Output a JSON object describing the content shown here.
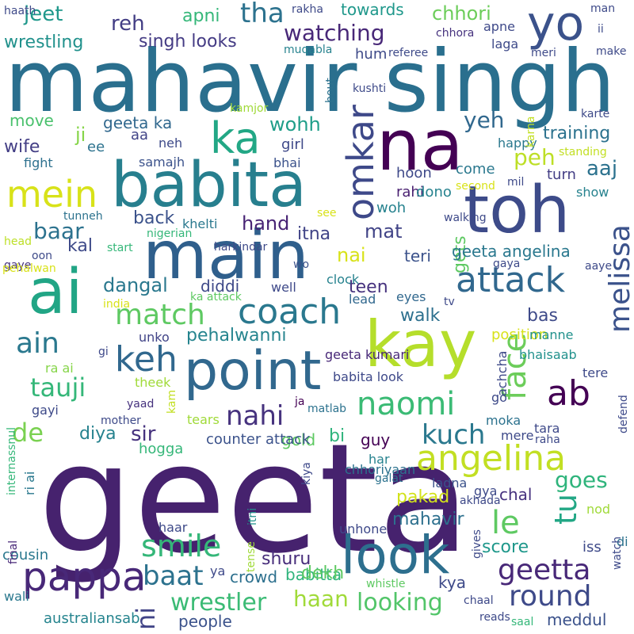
{
  "words": [
    {
      "text": "geeta",
      "color": "#46226e"
    },
    {
      "text": "mahavir singh",
      "color": "#2a6f8e"
    },
    {
      "text": "main",
      "color": "#2f5f8c"
    },
    {
      "text": "babita",
      "color": "#277f8e"
    },
    {
      "text": "toh",
      "color": "#3d4b89"
    },
    {
      "text": "na",
      "color": "#440154"
    },
    {
      "text": "ai",
      "color": "#21a585"
    },
    {
      "text": "kay",
      "color": "#b5de2b"
    },
    {
      "text": "point",
      "color": "#31688e"
    },
    {
      "text": "look",
      "color": "#2d6f8e"
    },
    {
      "text": "ka",
      "color": "#22a785"
    },
    {
      "text": "yo",
      "color": "#3b528b"
    },
    {
      "text": "omkar",
      "color": "#3e4989"
    },
    {
      "text": "mein",
      "color": "#d8e219"
    },
    {
      "text": "attack",
      "color": "#31688e"
    },
    {
      "text": "coach",
      "color": "#2a788e"
    },
    {
      "text": "pappa",
      "color": "#482878"
    },
    {
      "text": "angelina",
      "color": "#c2df23"
    },
    {
      "text": "melissa",
      "color": "#3b528b"
    },
    {
      "text": "face",
      "color": "#6ccd5a"
    },
    {
      "text": "naomi",
      "color": "#3bbb75"
    },
    {
      "text": "smile",
      "color": "#35b779"
    },
    {
      "text": "ab",
      "color": "#440154"
    },
    {
      "text": "keh",
      "color": "#31688e"
    },
    {
      "text": "geetta",
      "color": "#482878"
    },
    {
      "text": "round",
      "color": "#3e4a89"
    },
    {
      "text": "ain",
      "color": "#2a788e"
    },
    {
      "text": "match",
      "color": "#5ec962"
    },
    {
      "text": "tauji",
      "color": "#35b779"
    },
    {
      "text": "le",
      "color": "#5ec962"
    },
    {
      "text": "tu",
      "color": "#22a785"
    },
    {
      "text": "ni",
      "color": "#414487"
    },
    {
      "text": "baat",
      "color": "#2c728e"
    },
    {
      "text": "kuch",
      "color": "#2a788e"
    },
    {
      "text": "nahi",
      "color": "#46327e"
    },
    {
      "text": "de",
      "color": "#7ad151"
    },
    {
      "text": "wrestler",
      "color": "#3bbb75"
    },
    {
      "text": "looking",
      "color": "#52c569"
    },
    {
      "text": "haan",
      "color": "#a0da39"
    },
    {
      "text": "watching",
      "color": "#482878"
    },
    {
      "text": "tha",
      "color": "#2c728e"
    },
    {
      "text": "sir",
      "color": "#46327e"
    },
    {
      "text": "yeh",
      "color": "#31688e"
    },
    {
      "text": "baar",
      "color": "#2c728e"
    },
    {
      "text": "pehalwanni",
      "color": "#25848e"
    },
    {
      "text": "goes",
      "color": "#2fb47c"
    },
    {
      "text": "dangal",
      "color": "#2a788e"
    },
    {
      "text": "chhori",
      "color": "#6ccd5a"
    },
    {
      "text": "peh",
      "color": "#bddf26"
    },
    {
      "text": "aaj",
      "color": "#2c728e"
    },
    {
      "text": "wohh",
      "color": "#1f9e89"
    },
    {
      "text": "jeet",
      "color": "#1f988b"
    },
    {
      "text": "reh",
      "color": "#433e85"
    },
    {
      "text": "apni",
      "color": "#35b779"
    },
    {
      "text": "towards",
      "color": "#1f988b"
    },
    {
      "text": "wrestling",
      "color": "#21918c"
    },
    {
      "text": "singh looks",
      "color": "#443b84"
    },
    {
      "text": "geeta ka",
      "color": "#31688e"
    },
    {
      "text": "training",
      "color": "#2c728e"
    },
    {
      "text": "ji",
      "color": "#86d549"
    },
    {
      "text": "move",
      "color": "#4ac16d"
    },
    {
      "text": "ee",
      "color": "#2c728e"
    },
    {
      "text": "wife",
      "color": "#433e85"
    },
    {
      "text": "aa",
      "color": "#414487"
    },
    {
      "text": "girl",
      "color": "#3e4989"
    },
    {
      "text": "hand",
      "color": "#482475"
    },
    {
      "text": "mat",
      "color": "#414487"
    },
    {
      "text": "itna",
      "color": "#414487"
    },
    {
      "text": "nai",
      "color": "#d8e219"
    },
    {
      "text": "back",
      "color": "#3b528b"
    },
    {
      "text": "kal",
      "color": "#3e4a89"
    },
    {
      "text": "gets",
      "color": "#5ec962"
    },
    {
      "text": "teri",
      "color": "#3b528b"
    },
    {
      "text": "geeta angelina",
      "color": "#2a788e"
    },
    {
      "text": "teen",
      "color": "#46327e"
    },
    {
      "text": "walk",
      "color": "#2d708e"
    },
    {
      "text": "bas",
      "color": "#3e4a89"
    },
    {
      "text": "diddi",
      "color": "#3e4989"
    },
    {
      "text": "diya",
      "color": "#26828e"
    },
    {
      "text": "bi",
      "color": "#2fb47c"
    },
    {
      "text": "guy",
      "color": "#440154"
    },
    {
      "text": "gold",
      "color": "#5ec962"
    },
    {
      "text": "chal",
      "color": "#46327e"
    },
    {
      "text": "pakad",
      "color": "#d2e21b"
    },
    {
      "text": "mahavir",
      "color": "#2d708e"
    },
    {
      "text": "score",
      "color": "#1f988b"
    },
    {
      "text": "shuru",
      "color": "#472d7b"
    },
    {
      "text": "babitta",
      "color": "#2fb47c"
    },
    {
      "text": "dekh",
      "color": "#5ec962"
    },
    {
      "text": "kya",
      "color": "#3e4a89"
    },
    {
      "text": "crowd",
      "color": "#2d708e"
    },
    {
      "text": "people",
      "color": "#3b528b"
    },
    {
      "text": "australiansab",
      "color": "#25848e"
    },
    {
      "text": "meddul",
      "color": "#3b528b"
    },
    {
      "text": "cousin",
      "color": "#2a788e"
    },
    {
      "text": "counter attack",
      "color": "#3b528b"
    },
    {
      "text": "hogga",
      "color": "#35b779"
    },
    {
      "text": "achcha",
      "color": "#3e4a89"
    },
    {
      "text": "position",
      "color": "#d8e219"
    },
    {
      "text": "bhaisaab",
      "color": "#21918c"
    },
    {
      "text": "babita look",
      "color": "#3e4989"
    },
    {
      "text": "geeta kumari",
      "color": "#482878"
    },
    {
      "text": "lead",
      "color": "#31688e"
    },
    {
      "text": "eyes",
      "color": "#31688e"
    },
    {
      "text": "hoon",
      "color": "#3e4989"
    },
    {
      "text": "come",
      "color": "#2a788e"
    },
    {
      "text": "rahi",
      "color": "#481f70"
    },
    {
      "text": "dono",
      "color": "#26828e"
    },
    {
      "text": "woh",
      "color": "#26828e"
    },
    {
      "text": "turn",
      "color": "#433e85"
    },
    {
      "text": "show",
      "color": "#26828e"
    },
    {
      "text": "happy",
      "color": "#2a788e"
    },
    {
      "text": "bhai",
      "color": "#3b528b"
    },
    {
      "text": "samajh",
      "color": "#3b528b"
    },
    {
      "text": "neh",
      "color": "#3e4a89"
    },
    {
      "text": "fight",
      "color": "#2d708e"
    },
    {
      "text": "nigerian",
      "color": "#35b779"
    },
    {
      "text": "tunneh",
      "color": "#2c728e"
    },
    {
      "text": "khelti",
      "color": "#2a788e"
    },
    {
      "text": "start",
      "color": "#35b779"
    },
    {
      "text": "head",
      "color": "#bddf26"
    },
    {
      "text": "gaye",
      "color": "#46327e"
    },
    {
      "text": "oon",
      "color": "#3e4a89"
    },
    {
      "text": "pehalwan",
      "color": "#d8e219"
    },
    {
      "text": "harkindar",
      "color": "#3e4a89"
    },
    {
      "text": "wo",
      "color": "#3b528b"
    },
    {
      "text": "well",
      "color": "#3e4989"
    },
    {
      "text": "clock",
      "color": "#26828e"
    },
    {
      "text": "india",
      "color": "#d8e219"
    },
    {
      "text": "ka attack",
      "color": "#5ec962"
    },
    {
      "text": "unko",
      "color": "#414487"
    },
    {
      "text": "gi",
      "color": "#3e4989"
    },
    {
      "text": "ra ai",
      "color": "#86d549"
    },
    {
      "text": "theek",
      "color": "#a0da39"
    },
    {
      "text": "yaad",
      "color": "#46327e"
    },
    {
      "text": "kam",
      "color": "#c2df23"
    },
    {
      "text": "tears",
      "color": "#a0da39"
    },
    {
      "text": "ja",
      "color": "#440154"
    },
    {
      "text": "matlab",
      "color": "#2c728e"
    },
    {
      "text": "mother",
      "color": "#3e4a89"
    },
    {
      "text": "gayi",
      "color": "#3e4a89"
    },
    {
      "text": "ladna",
      "color": "#3b528b"
    },
    {
      "text": "moka",
      "color": "#2c728e"
    },
    {
      "text": "mere",
      "color": "#3e4a89"
    },
    {
      "text": "tara",
      "color": "#3e4989"
    },
    {
      "text": "raha",
      "color": "#3e4a89"
    },
    {
      "text": "defend",
      "color": "#3e4a89"
    },
    {
      "text": "tere",
      "color": "#3e4a89"
    },
    {
      "text": "manne",
      "color": "#21918c"
    },
    {
      "text": "go",
      "color": "#3e4a89"
    },
    {
      "text": "internassnul",
      "color": "#35b779"
    },
    {
      "text": "ri ai",
      "color": "#2a788e"
    },
    {
      "text": "har",
      "color": "#26828e"
    },
    {
      "text": "galat",
      "color": "#2c728e"
    },
    {
      "text": "kiya",
      "color": "#3e4989"
    },
    {
      "text": "itni",
      "color": "#21918c"
    },
    {
      "text": "chhoriyaan",
      "color": "#2c728e"
    },
    {
      "text": "haar",
      "color": "#3e4a89"
    },
    {
      "text": "unhone",
      "color": "#3e4989"
    },
    {
      "text": "akhada",
      "color": "#3e4989"
    },
    {
      "text": "gya",
      "color": "#3e4a89"
    },
    {
      "text": "nod",
      "color": "#a0da39"
    },
    {
      "text": "gives",
      "color": "#3e4a89"
    },
    {
      "text": "iss",
      "color": "#3e4a89"
    },
    {
      "text": "di",
      "color": "#2c728e"
    },
    {
      "text": "watch",
      "color": "#3e4a89"
    },
    {
      "text": "final",
      "color": "#482878"
    },
    {
      "text": "wali",
      "color": "#2a788e"
    },
    {
      "text": "tense",
      "color": "#a0da39"
    },
    {
      "text": "ya",
      "color": "#3e4989"
    },
    {
      "text": "whistle",
      "color": "#5ec962"
    },
    {
      "text": "chaal",
      "color": "#3e4989"
    },
    {
      "text": "reads",
      "color": "#3e4a89"
    },
    {
      "text": "saal",
      "color": "#35b779"
    },
    {
      "text": "haath",
      "color": "#3e4a89"
    },
    {
      "text": "rakha",
      "color": "#3e4a89"
    },
    {
      "text": "apne",
      "color": "#3e4989"
    },
    {
      "text": "chhora",
      "color": "#46327e"
    },
    {
      "text": "laga",
      "color": "#3e4a89"
    },
    {
      "text": "man",
      "color": "#3e4a89"
    },
    {
      "text": "ii",
      "color": "#3e4a89"
    },
    {
      "text": "make",
      "color": "#3e4a89"
    },
    {
      "text": "meri",
      "color": "#3e4a89"
    },
    {
      "text": "muqabla",
      "color": "#26828e"
    },
    {
      "text": "hum",
      "color": "#3e4a89"
    },
    {
      "text": "referee",
      "color": "#3e4a89"
    },
    {
      "text": "kushti",
      "color": "#3e4a89"
    },
    {
      "text": "bout",
      "color": "#2c728e"
    },
    {
      "text": "kamjor",
      "color": "#a0da39"
    },
    {
      "text": "karna",
      "color": "#c2df23"
    },
    {
      "text": "karte",
      "color": "#3e4a89"
    },
    {
      "text": "standing",
      "color": "#c2df23"
    },
    {
      "text": "second",
      "color": "#d8e219"
    },
    {
      "text": "mil",
      "color": "#3e4a89"
    },
    {
      "text": "see",
      "color": "#d8e219"
    },
    {
      "text": "walking",
      "color": "#3e4a89"
    },
    {
      "text": "gaya",
      "color": "#3e4a89"
    },
    {
      "text": "aaye",
      "color": "#3e4a89"
    },
    {
      "text": "tv",
      "color": "#3e4a89"
    }
  ]
}
